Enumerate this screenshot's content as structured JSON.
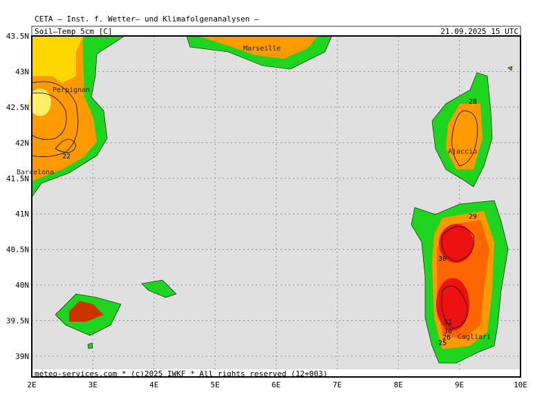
{
  "header": {
    "title": "CETA — Inst. f. Wetter— und Klimafolgenanalysen —",
    "field": "Soil—Temp_5cm_[C]",
    "valid_time": "21.09.2025 15 UTC"
  },
  "map": {
    "lat_ticks": [
      {
        "value": 43.5,
        "label": "43.5N"
      },
      {
        "value": 43,
        "label": "43N"
      },
      {
        "value": 42.5,
        "label": "42.5N"
      },
      {
        "value": 42,
        "label": "42N"
      },
      {
        "value": 41.5,
        "label": "41.5N"
      },
      {
        "value": 41,
        "label": "41N"
      },
      {
        "value": 40.5,
        "label": "40.5N"
      },
      {
        "value": 40,
        "label": "40N"
      },
      {
        "value": 39.5,
        "label": "39.5N"
      },
      {
        "value": 39,
        "label": "39N"
      }
    ],
    "lon_ticks": [
      {
        "value": 2,
        "label": "2E"
      },
      {
        "value": 3,
        "label": "3E"
      },
      {
        "value": 4,
        "label": "4E"
      },
      {
        "value": 5,
        "label": "5E"
      },
      {
        "value": 6,
        "label": "6E"
      },
      {
        "value": 7,
        "label": "7E"
      },
      {
        "value": 8,
        "label": "8E"
      },
      {
        "value": 9,
        "label": "9E"
      },
      {
        "value": 10,
        "label": "10E"
      }
    ],
    "places": [
      "Perpignan",
      "Barcelona",
      "Marseille",
      "Ajaccio",
      "Cagliari"
    ],
    "contour_labels": [
      22,
      28,
      29,
      30,
      31,
      30,
      26,
      25
    ]
  },
  "footer": "meteo-services.com * (c)2025 IWKF * All rights reserved (12+003)"
}
